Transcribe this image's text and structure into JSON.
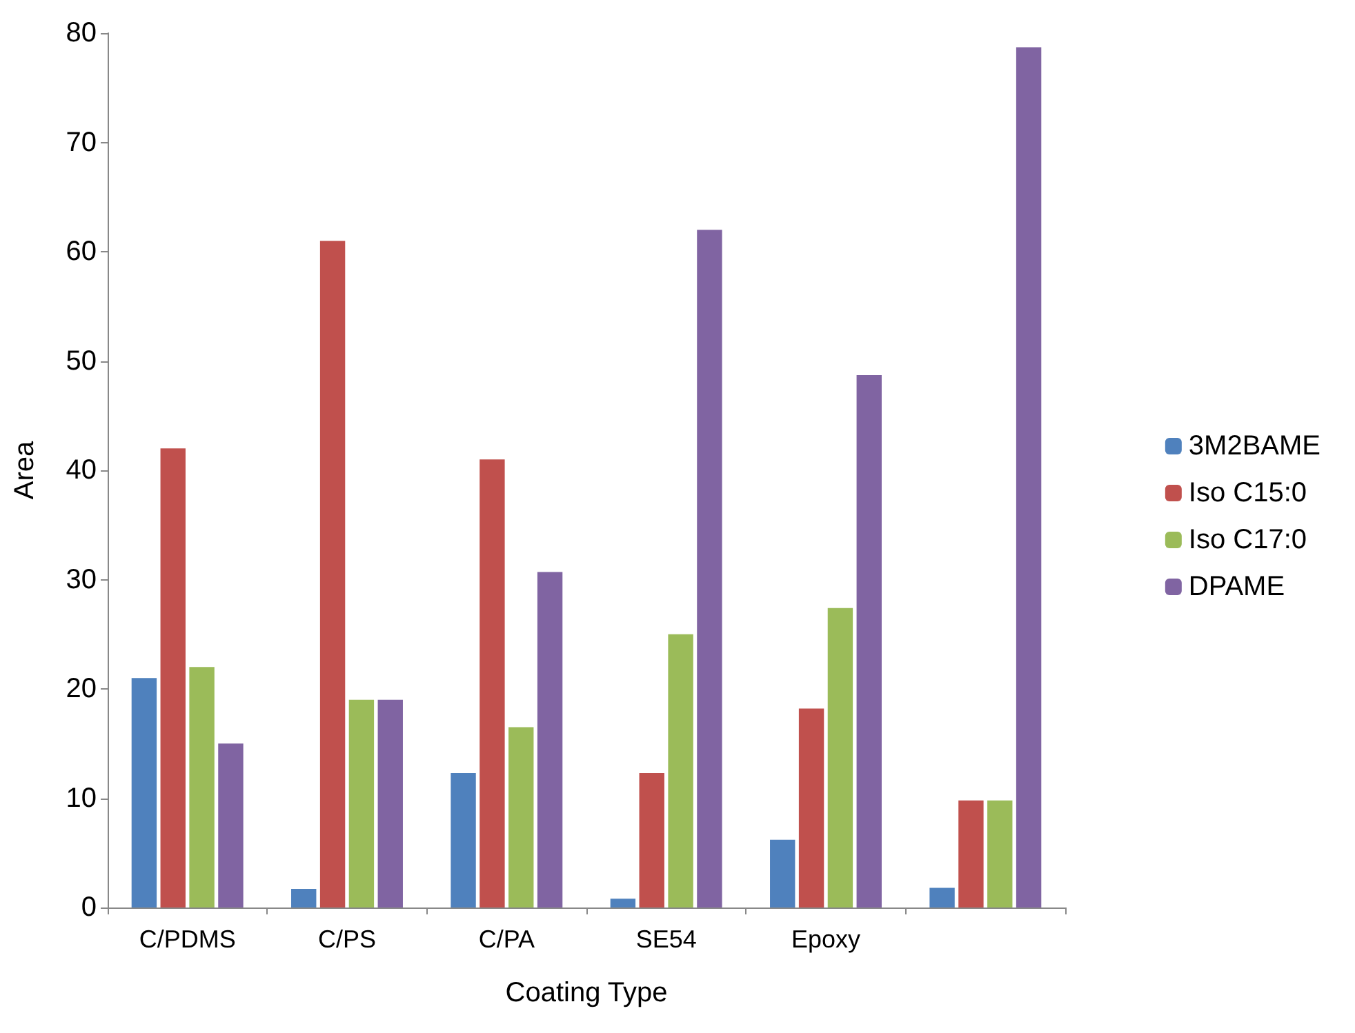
{
  "chart_data": {
    "type": "bar",
    "xlabel": "Coating Type",
    "ylabel": "Area",
    "categories": [
      "C/PDMS",
      "C/PS",
      "C/PA",
      "SE54",
      "Epoxy",
      null
    ],
    "series": [
      {
        "name": "3M2BAME",
        "color": "#4f81bd",
        "values": [
          21,
          1.7,
          12.3,
          0.8,
          6.2,
          1.8
        ]
      },
      {
        "name": "Iso C15:0",
        "color": "#c0504d",
        "values": [
          42,
          61,
          41,
          12.3,
          18.2,
          9.8
        ]
      },
      {
        "name": "Iso C17:0",
        "color": "#9bbb59",
        "values": [
          22,
          19,
          16.5,
          25,
          27.4,
          9.8
        ]
      },
      {
        "name": "DPAME",
        "color": "#8064a2",
        "values": [
          15,
          19,
          30.7,
          62,
          48.7,
          78.7
        ]
      }
    ],
    "ylim": [
      0,
      80
    ],
    "yticks": [
      0,
      10,
      20,
      30,
      40,
      50,
      60,
      70,
      80
    ],
    "grid": false,
    "legend": "right"
  }
}
